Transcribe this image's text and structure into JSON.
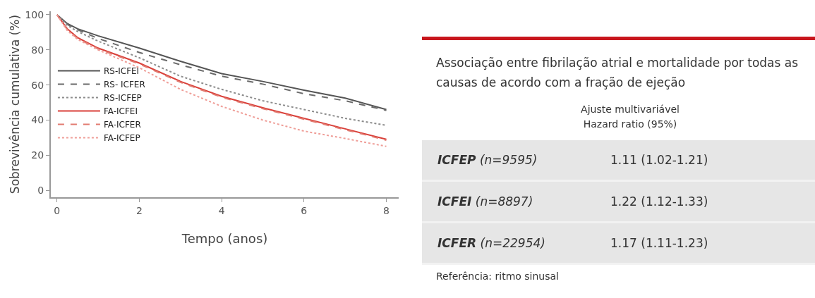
{
  "chart_data": [
    {
      "type": "line",
      "xlabel": "Tempo (anos)",
      "ylabel": "Sobrevivência cumulativa (%)",
      "x": [
        0,
        0.25,
        0.5,
        1,
        2,
        3,
        4,
        5,
        6,
        7,
        8
      ],
      "xlim": [
        -0.15,
        8.3
      ],
      "xticks": [
        0,
        2,
        4,
        6,
        8
      ],
      "ylim": [
        -4,
        102
      ],
      "yticks": [
        0,
        20,
        40,
        60,
        80,
        100
      ],
      "grid": false,
      "legend": "left",
      "marker": "none",
      "series": [
        {
          "name": "RS-ICFEI",
          "color": "#555555",
          "line_style": "solid",
          "values": [
            100,
            95,
            92,
            88,
            81,
            73.5,
            66.5,
            62,
            57,
            52.5,
            46
          ]
        },
        {
          "name": "RS- ICFER",
          "color": "#6a6a6a",
          "line_style": "dashed",
          "values": [
            100,
            94.5,
            91.5,
            86.5,
            78.5,
            71.5,
            65,
            60.5,
            55,
            51,
            45.5
          ]
        },
        {
          "name": "RS-ICFEP",
          "color": "#8c8c8c",
          "line_style": "dotted",
          "values": [
            100,
            94,
            90.5,
            85,
            75.5,
            65,
            57.5,
            51,
            46,
            41,
            37
          ]
        },
        {
          "name": "FA-ICFEI",
          "color": "#d9403a",
          "line_style": "solid",
          "values": [
            100,
            92,
            87,
            81,
            72.5,
            62,
            53.5,
            47,
            41,
            35,
            29
          ]
        },
        {
          "name": "FA-ICFER",
          "color": "#e27a70",
          "line_style": "dashed",
          "values": [
            100,
            91.5,
            86.5,
            80.5,
            72,
            61.5,
            53,
            46.5,
            40.5,
            34.5,
            28.5
          ]
        },
        {
          "name": "FA-ICFEP",
          "color": "#ef9e98",
          "line_style": "dotted",
          "values": [
            100,
            91,
            86,
            80,
            69.8,
            57.5,
            47.8,
            40,
            33.7,
            29.5,
            25
          ]
        }
      ]
    },
    {
      "type": "other",
      "title": "Associação entre fibrilação atrial e mortalidade por todas as causas de acordo com a fração de ejeção",
      "annotations": [
        "Ajuste multivariável",
        "Hazard ratio (95%)",
        "ICFEP (n=9595)",
        "1.11 (1.02-1.21)",
        "ICFEI (n=8897)",
        "1.22 (1.12-1.33)",
        "ICFER (n=22954)",
        "1.17 (1.11-1.23)",
        "Referência: ritmo sinusal"
      ]
    }
  ]
}
